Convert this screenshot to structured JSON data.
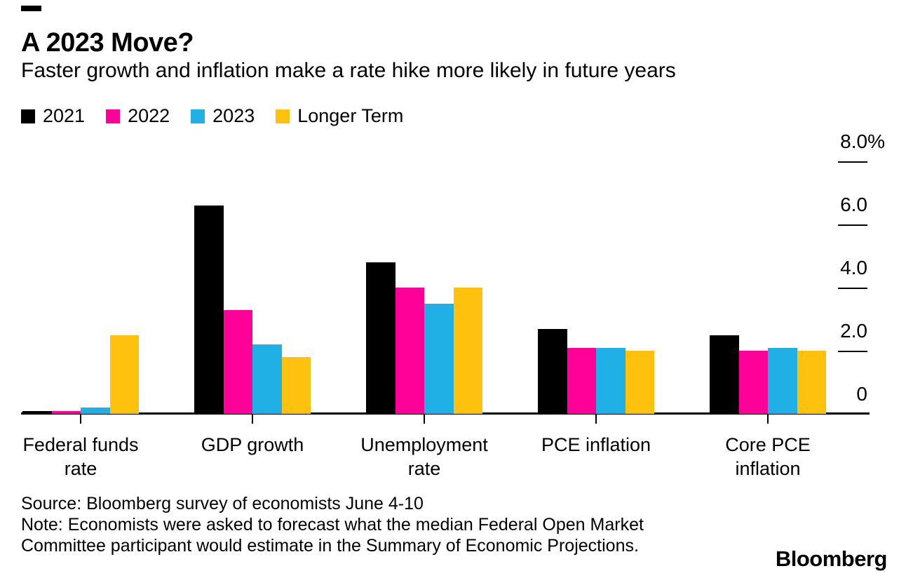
{
  "header": {
    "title": "A 2023 Move?",
    "subtitle": "Faster growth and inflation make a rate hike more likely in future years"
  },
  "legend": [
    {
      "label": "2021",
      "color": "#000000"
    },
    {
      "label": "2022",
      "color": "#ff0099"
    },
    {
      "label": "2023",
      "color": "#1fb0e6"
    },
    {
      "label": "Longer Term",
      "color": "#fdc10e"
    }
  ],
  "chart_data": {
    "type": "bar",
    "title": "A 2023 Move?",
    "subtitle": "Faster growth and inflation make a rate hike more likely in future years",
    "categories": [
      "Federal funds rate",
      "GDP growth",
      "Unemployment rate",
      "PCE inflation",
      "Core PCE inflation"
    ],
    "series": [
      {
        "name": "2021",
        "color": "#000000",
        "values": [
          0.1,
          6.6,
          4.8,
          2.7,
          2.5
        ]
      },
      {
        "name": "2022",
        "color": "#ff0099",
        "values": [
          0.1,
          3.3,
          4.0,
          2.1,
          2.0
        ]
      },
      {
        "name": "2023",
        "color": "#1fb0e6",
        "values": [
          0.2,
          2.2,
          3.5,
          2.1,
          2.1
        ]
      },
      {
        "name": "Longer Term",
        "color": "#fdc10e",
        "values": [
          2.5,
          1.8,
          4.0,
          2.0,
          2.0
        ]
      }
    ],
    "yticks": [
      {
        "label": "8.0%",
        "value": 8
      },
      {
        "label": "6.0",
        "value": 6
      },
      {
        "label": "4.0",
        "value": 4
      },
      {
        "label": "2.0",
        "value": 2
      },
      {
        "label": "0",
        "value": 0
      }
    ],
    "ylim": [
      0,
      8
    ],
    "unit": "%",
    "axis_side": "right",
    "grid": "short-tick-dashes",
    "legend_position": "top-left"
  },
  "footer": {
    "source": "Source: Bloomberg survey of economists June 4-10",
    "note_lines": [
      "Note: Economists were asked to forecast what the median Federal Open Market",
      "Committee participant would estimate in the Summary of Economic Projections."
    ],
    "brand": "Bloomberg"
  }
}
